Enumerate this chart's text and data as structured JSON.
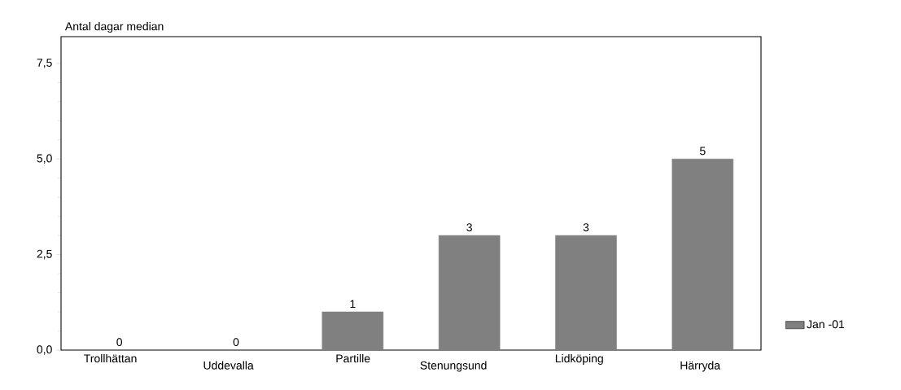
{
  "chart_data": {
    "type": "bar",
    "ylabel": "Antal dagar median",
    "categories": [
      "Trollhättan",
      "Uddevalla",
      "Partille",
      "Stenungsund",
      "Lidköping",
      "Härryda"
    ],
    "series": [
      {
        "name": "Jan -01",
        "color": "#808080",
        "values": [
          0,
          0,
          1,
          3,
          3,
          5
        ]
      }
    ],
    "ylim": [
      0,
      8.2
    ],
    "yticks": [
      {
        "value": 0,
        "label": "0,0"
      },
      {
        "value": 2.5,
        "label": "2,5"
      },
      {
        "value": 5,
        "label": "5,0"
      },
      {
        "value": 7.5,
        "label": "7,5"
      }
    ],
    "data_labels": true,
    "legend": "right",
    "grid": false
  }
}
